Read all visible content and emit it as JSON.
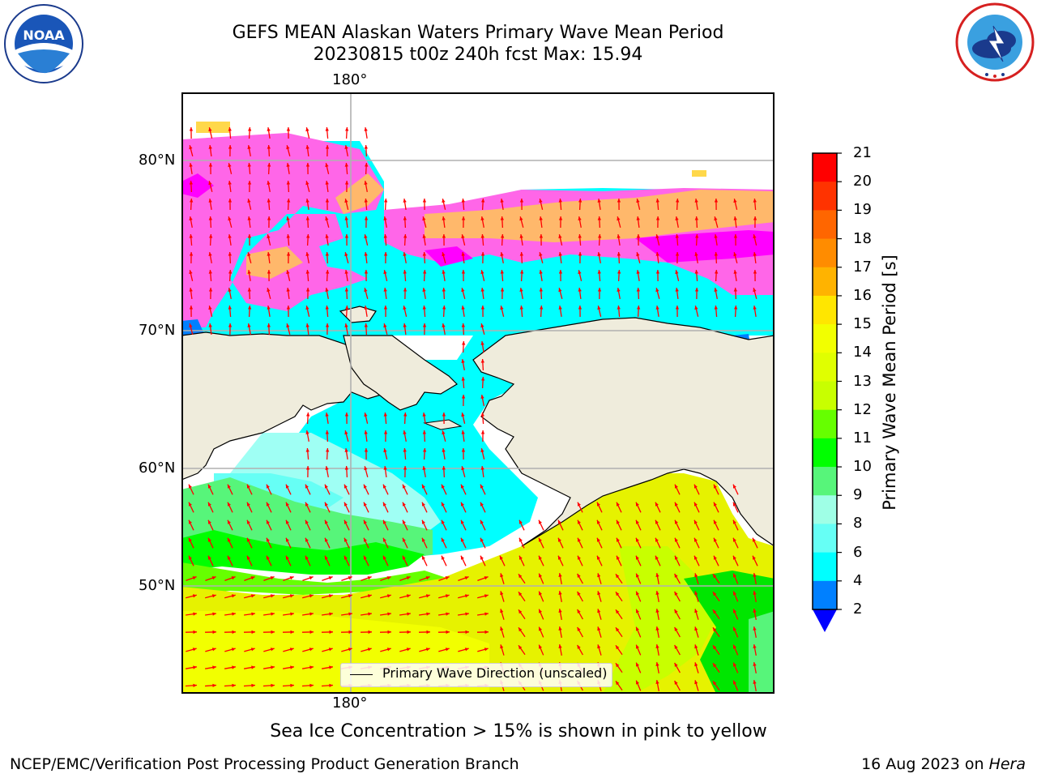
{
  "header": {
    "title_line1": "GEFS MEAN Alaskan Waters Primary Wave Mean Period",
    "title_line2": "20230815 t00z 240h fcst   Max: 15.94"
  },
  "logos": {
    "left": {
      "name": "NOAA",
      "text": "NOAA",
      "ring_text": "NATIONAL OCEANIC AND ATMOSPHERIC ADMINISTRATION · U.S. DEPARTMENT OF COMMERCE"
    },
    "right": {
      "name": "National Weather Service",
      "ring_text": "NATIONAL WEATHER SERVICE"
    }
  },
  "map": {
    "longitude_labels": {
      "top": "180°",
      "bottom": "180°"
    },
    "latitude_labels": [
      "80°N",
      "70°N",
      "60°N",
      "50°N"
    ],
    "colors": {
      "land": "#efecdc",
      "open_ocean_yellow": "#e6f200",
      "bering_cyan": "#00ffff",
      "light_cyan": "#9ffff4",
      "green": "#00e600",
      "arrow": "#ff0000",
      "ice_pink": "#ff66e8",
      "ice_magenta": "#ff00ff",
      "ice_orange": "#ffb86b",
      "ice_yellow": "#ffd84a",
      "dark_blue": "#0080ff"
    },
    "legend_label": "Primary Wave Direction (unscaled)"
  },
  "colorbar": {
    "label": "Primary Wave Mean Period [s]",
    "ticks": [
      "21",
      "20",
      "19",
      "18",
      "17",
      "16",
      "15",
      "14",
      "13",
      "12",
      "11",
      "10",
      "9",
      "8",
      "6",
      "4",
      "2"
    ],
    "colors_top_to_bottom": [
      "#ff0000",
      "#ff3300",
      "#ff6600",
      "#ff8c00",
      "#ffb300",
      "#ffe600",
      "#f2ff00",
      "#e0ff00",
      "#c8ff00",
      "#66ff00",
      "#00ff00",
      "#57f57a",
      "#9fffe6",
      "#66fff5",
      "#00ffff",
      "#0080ff"
    ],
    "extend_color": "#0000ff"
  },
  "caption": "Sea Ice Concentration > 15% is shown in pink to yellow",
  "footer": {
    "left": "NCEP/EMC/Verification Post Processing Product Generation Branch",
    "right_prefix": "16 Aug 2023 on ",
    "right_machine": "Hera"
  }
}
